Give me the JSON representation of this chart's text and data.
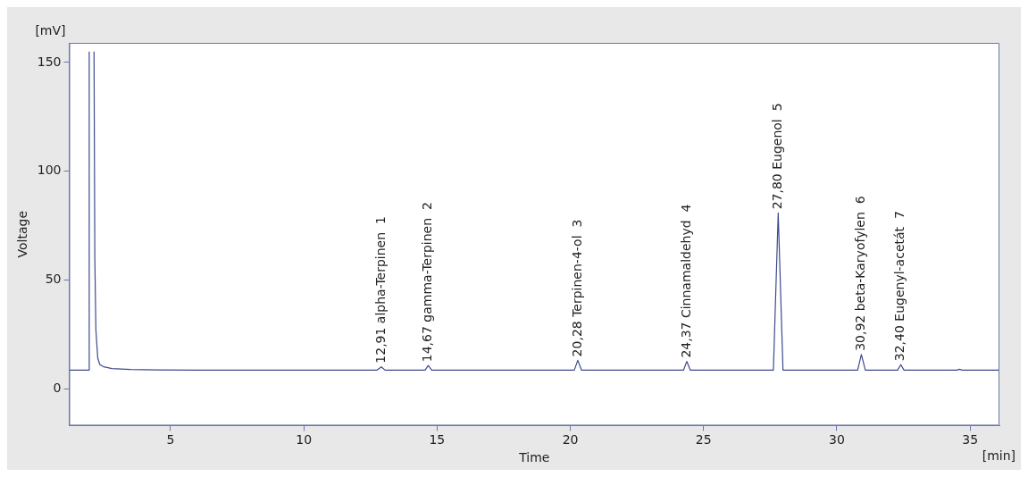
{
  "chart_data": {
    "type": "line",
    "xlabel": "Time",
    "ylabel": "Voltage",
    "xlim": [
      1.2,
      36.1
    ],
    "xticks": [
      5,
      10,
      15,
      20,
      25,
      30,
      35
    ],
    "ylim": [
      -17,
      159
    ],
    "yticks": [
      0,
      50,
      100,
      150
    ],
    "grid": false,
    "legend": false,
    "marker": "none",
    "line_style": "solid",
    "series": [
      {
        "color": "#3c4a8c",
        "x": [
          1.2,
          1.93,
          1.95,
          1.96,
          2.12,
          2.13,
          2.16,
          2.2,
          2.27,
          2.35,
          2.5,
          2.8,
          3.5,
          4.5,
          6,
          12.75,
          12.91,
          13.05,
          14.55,
          14.67,
          14.8,
          20.15,
          20.28,
          20.42,
          24.25,
          24.37,
          24.5,
          27.62,
          27.8,
          27.98,
          30.78,
          30.92,
          31.07,
          32.28,
          32.4,
          32.52,
          34.5,
          34.6,
          34.7,
          36.1
        ],
        "values": [
          8.5,
          8.5,
          155,
          null,
          null,
          155,
          60,
          27,
          14,
          11,
          10,
          9.2,
          8.8,
          8.6,
          8.5,
          8.5,
          10,
          8.5,
          8.5,
          10.6,
          8.5,
          8.5,
          13,
          8.5,
          8.5,
          12.5,
          8.5,
          8.5,
          80.8,
          8.5,
          8.5,
          15.7,
          8.5,
          8.5,
          11,
          8.5,
          8.5,
          8.9,
          8.5,
          8.5
        ]
      }
    ],
    "annotations": [
      "[mV]",
      "[min]",
      {
        "text": "12,91 alpha-Terpinen  1",
        "x": 12.91,
        "y": 10
      },
      {
        "text": "14,67 gamma-Terpinen  2",
        "x": 14.67,
        "y": 10.6
      },
      {
        "text": "20,28 Terpinen-4-ol  3",
        "x": 20.28,
        "y": 13
      },
      {
        "text": "24,37 Cinnamaldehyd  4",
        "x": 24.37,
        "y": 12.5
      },
      {
        "text": "27,80 Eugenol  5",
        "x": 27.8,
        "y": 80.8
      },
      {
        "text": "30,92 beta-Karyofylen  6",
        "x": 30.92,
        "y": 15.7
      },
      {
        "text": "32,40 Eugenyl-acetát  7",
        "x": 32.4,
        "y": 11
      }
    ]
  }
}
